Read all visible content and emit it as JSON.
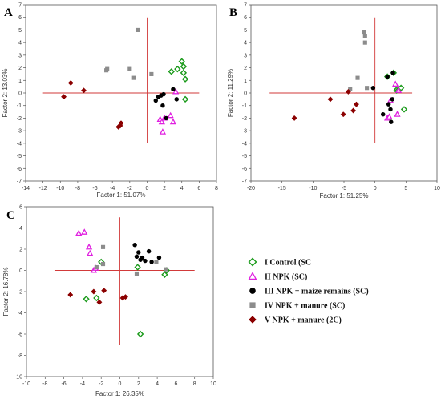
{
  "legend": [
    {
      "label": "I Control (SC",
      "marker": "diamond-open",
      "color": "#1a9a1a"
    },
    {
      "label": "II NPK (SC)",
      "marker": "triangle-open",
      "color": "#e020e0"
    },
    {
      "label": "III NPK + maize remains (SC)",
      "marker": "circle",
      "color": "#000000"
    },
    {
      "label": "IV NPK + manure (SC)",
      "marker": "square",
      "color": "#8c8c8c"
    },
    {
      "label": "V NPK + manure (2C)",
      "marker": "diamond",
      "color": "#8b0000"
    }
  ],
  "chart_data": [
    {
      "type": "scatter",
      "panel": "A",
      "xlabel": "Factor 1: 51.07%",
      "ylabel": "Factor 2: 13.03%",
      "xlim": [
        -14,
        8
      ],
      "ylim": [
        -7,
        7
      ],
      "xticks": [
        -14,
        -12,
        -10,
        -8,
        -6,
        -4,
        -2,
        0,
        2,
        4,
        6,
        8
      ],
      "yticks": [
        -7,
        -6,
        -5,
        -4,
        -3,
        -2,
        -1,
        0,
        1,
        2,
        3,
        4,
        5,
        6,
        7
      ],
      "refline_x": [
        0,
        -4,
        6
      ],
      "refline_y": [
        0,
        -12,
        6
      ],
      "series": [
        {
          "name": "I Control (SC",
          "x": [
            2.8,
            3.5,
            4.0,
            4.2,
            4.4,
            4.2,
            4.4
          ],
          "y": [
            1.7,
            1.9,
            2.5,
            2.1,
            1.1,
            1.6,
            -0.5
          ]
        },
        {
          "name": "II NPK (SC)",
          "x": [
            1.5,
            1.7,
            2.0,
            1.8,
            2.7,
            3.0,
            3.3
          ],
          "y": [
            -2.1,
            -2.3,
            -2.0,
            -3.1,
            -1.8,
            -2.3,
            0.1
          ]
        },
        {
          "name": "III NPK + maize remains (SC)",
          "x": [
            1.3,
            1.6,
            1.9,
            1.0,
            1.8,
            2.2,
            3.0,
            3.4
          ],
          "y": [
            -0.3,
            -0.2,
            -0.1,
            -0.6,
            -1.0,
            -2.0,
            0.3,
            -0.5
          ]
        },
        {
          "name": "IV NPK + manure (SC)",
          "x": [
            -1.1,
            -4.7,
            -4.6,
            -2.0,
            -1.5,
            0.5
          ],
          "y": [
            5.0,
            1.8,
            1.9,
            1.9,
            1.2,
            1.5
          ]
        },
        {
          "name": "V NPK + manure (2C)",
          "x": [
            -9.6,
            -8.8,
            -7.3,
            -3.3,
            -3.0,
            -3.1
          ],
          "y": [
            -0.3,
            0.8,
            0.2,
            -2.7,
            -2.4,
            -2.6
          ]
        }
      ]
    },
    {
      "type": "scatter",
      "panel": "B",
      "xlabel": "Factor 1: 51.25%",
      "ylabel": "Factor 2: 11.29%",
      "xlim": [
        -20,
        10
      ],
      "ylim": [
        -7,
        7
      ],
      "xticks": [
        -20,
        -15,
        -10,
        -5,
        0,
        5,
        10
      ],
      "yticks": [
        -7,
        -6,
        -5,
        -4,
        -3,
        -2,
        -1,
        0,
        1,
        2,
        3,
        4,
        5,
        6,
        7
      ],
      "refline_x": [
        0,
        -4,
        6
      ],
      "refline_y": [
        0,
        -17,
        6
      ],
      "series": [
        {
          "name": "I Control (SC",
          "x": [
            2.0,
            3.0,
            3.5,
            3.6,
            3.9,
            4.2,
            4.7
          ],
          "y": [
            1.3,
            1.6,
            0.2,
            0.3,
            0.3,
            0.4,
            -1.3
          ]
        },
        {
          "name": "II NPK (SC)",
          "x": [
            2.0,
            2.3,
            2.5,
            3.3,
            3.6,
            3.8
          ],
          "y": [
            -2.0,
            -1.9,
            -0.6,
            0.7,
            -1.7,
            0.2
          ]
        },
        {
          "name": "III NPK + maize remains (SC)",
          "x": [
            -0.3,
            1.3,
            2.0,
            2.2,
            2.5,
            2.6,
            2.8,
            2.9
          ],
          "y": [
            0.4,
            -1.7,
            1.3,
            -0.9,
            -1.3,
            -2.3,
            -0.5,
            1.6
          ]
        },
        {
          "name": "IV NPK + manure (SC)",
          "x": [
            -1.8,
            -1.6,
            -1.6,
            -2.8,
            -1.3,
            -4.0
          ],
          "y": [
            4.8,
            4.5,
            4.0,
            1.2,
            0.4,
            0.3
          ]
        },
        {
          "name": "V NPK + manure (2C)",
          "x": [
            -13.0,
            -7.2,
            -5.1,
            -4.3,
            -3.5,
            -3.0
          ],
          "y": [
            -2.0,
            -0.5,
            -1.7,
            0.1,
            -1.4,
            -0.9
          ]
        }
      ]
    },
    {
      "type": "scatter",
      "panel": "C",
      "xlabel": "Factor 1: 26.35%",
      "ylabel": "Factor 2: 16.78%",
      "xlim": [
        -10,
        10
      ],
      "ylim": [
        -10,
        6
      ],
      "xticks": [
        -10,
        -8,
        -6,
        -4,
        -2,
        0,
        2,
        4,
        6,
        8,
        10
      ],
      "yticks": [
        -10,
        -8,
        -6,
        -4,
        -2,
        0,
        2,
        4,
        6
      ],
      "refline_x": [
        0,
        -7,
        5
      ],
      "refline_y": [
        0,
        -7,
        8
      ],
      "series": [
        {
          "name": "I Control (SC",
          "x": [
            -3.6,
            -2.5,
            -2.0,
            1.9,
            4.8,
            5.0,
            2.2
          ],
          "y": [
            -2.7,
            -2.6,
            0.8,
            0.3,
            -0.4,
            0.0,
            -6.0
          ]
        },
        {
          "name": "II NPK (SC)",
          "x": [
            -4.4,
            -3.8,
            -3.3,
            -3.2,
            -2.8,
            -2.6
          ],
          "y": [
            3.5,
            3.6,
            2.2,
            1.6,
            0.0,
            0.2
          ]
        },
        {
          "name": "III NPK + maize remains (SC)",
          "x": [
            1.6,
            1.8,
            2.0,
            2.2,
            2.4,
            2.7,
            3.1,
            3.4,
            4.2
          ],
          "y": [
            2.4,
            1.3,
            1.7,
            1.0,
            1.2,
            0.9,
            1.8,
            0.8,
            1.2
          ]
        },
        {
          "name": "IV NPK + manure (SC)",
          "x": [
            -1.8,
            -1.8,
            -2.5,
            1.8,
            3.9,
            4.9
          ],
          "y": [
            2.2,
            0.6,
            0.3,
            -0.3,
            0.8,
            0.1
          ]
        },
        {
          "name": "V NPK + manure (2C)",
          "x": [
            -5.3,
            -2.8,
            -2.2,
            -1.7,
            0.3,
            0.6
          ],
          "y": [
            -2.3,
            -2.0,
            -3.0,
            -1.9,
            -2.6,
            -2.5
          ]
        }
      ]
    }
  ]
}
